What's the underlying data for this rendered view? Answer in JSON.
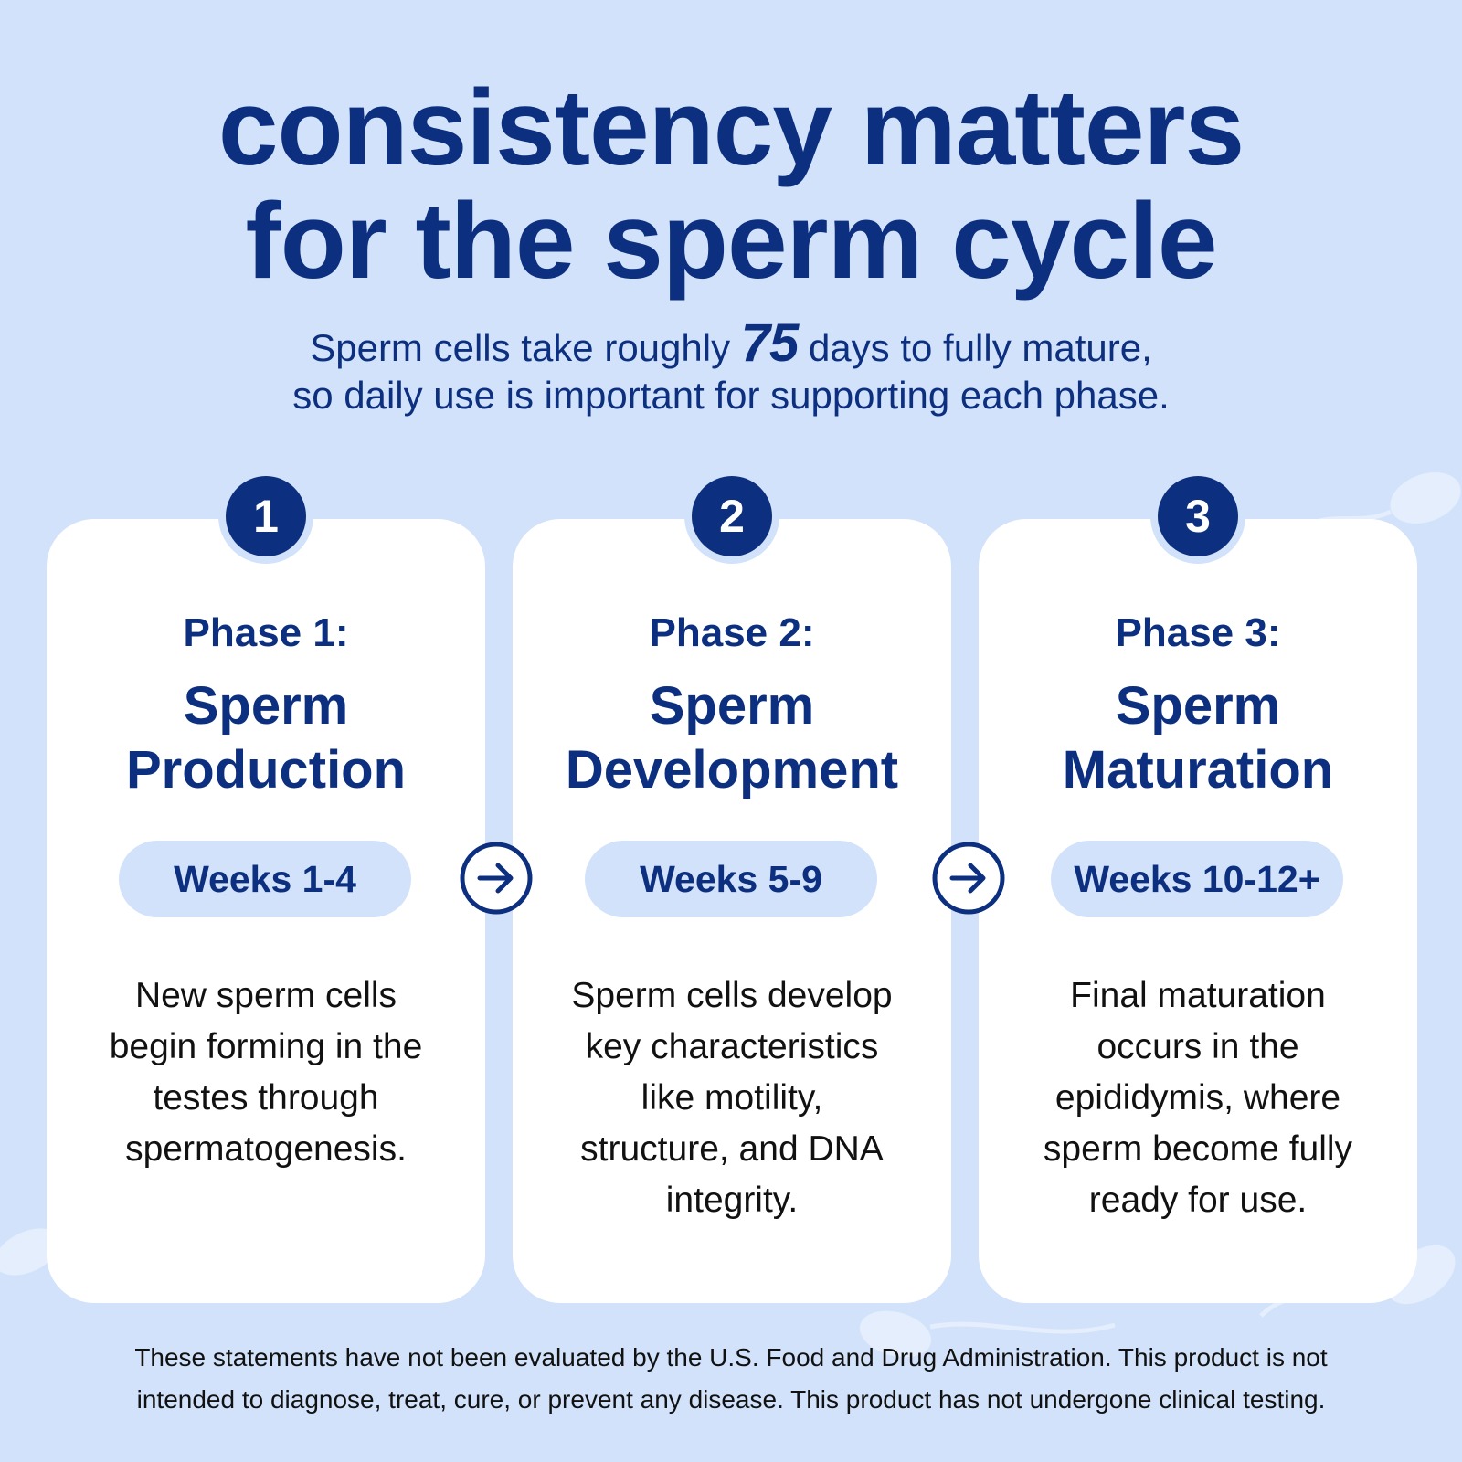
{
  "title": {
    "line1": "consistency matters",
    "line2": "for the sperm cycle"
  },
  "subtitle": {
    "line1_before": "Sperm cells take roughly ",
    "line1_number": "75",
    "line1_after": " days to fully mature,",
    "line2": "so daily use is important for supporting each phase."
  },
  "phases": [
    {
      "number": "1",
      "label": "Phase 1:",
      "name_line1": "Sperm",
      "name_line2": "Production",
      "weeks": "Weeks 1-4",
      "desc": [
        "New sperm cells",
        "begin forming in the",
        "testes through",
        "spermatogenesis."
      ]
    },
    {
      "number": "2",
      "label": "Phase 2:",
      "name_line1": "Sperm",
      "name_line2": "Development",
      "weeks": "Weeks 5-9",
      "desc": [
        "Sperm cells develop",
        "key characteristics",
        "like motility,",
        "structure, and DNA",
        "integrity."
      ]
    },
    {
      "number": "3",
      "label": "Phase 3:",
      "name_line1": "Sperm",
      "name_line2": "Maturation",
      "weeks": "Weeks 10-12+",
      "desc": [
        "Final maturation",
        "occurs in the",
        "epididymis, where",
        "sperm become fully",
        "ready for use."
      ]
    }
  ],
  "arrows": [
    "arrow-right-circle-icon",
    "arrow-right-circle-icon"
  ],
  "disclaimer": {
    "line1": "These statements have not been evaluated by the U.S. Food and Drug Administration. This product is not",
    "line2": "intended to diagnose, treat, cure, or prevent any disease. This product has not undergone clinical testing."
  },
  "colors": {
    "background": "#d1e2fa",
    "navy": "#0c2f7f",
    "card": "#ffffff",
    "pill": "#d1e2fa",
    "body_text": "#111111"
  }
}
